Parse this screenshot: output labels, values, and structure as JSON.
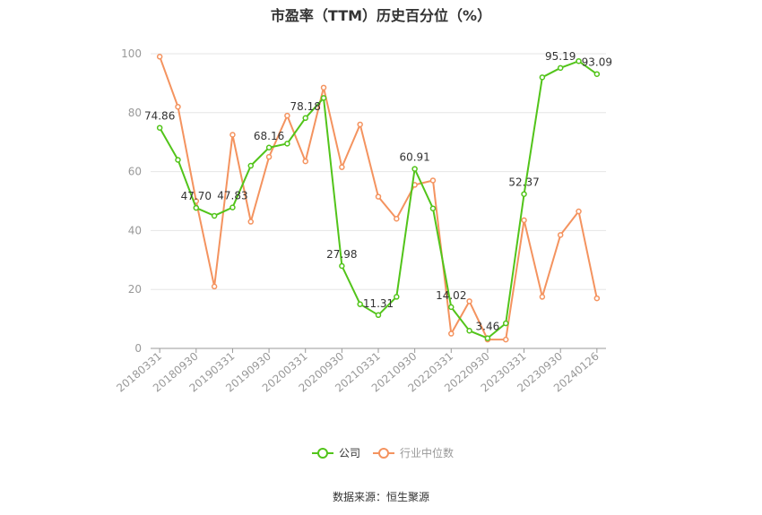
{
  "chart_data": {
    "type": "line",
    "title": "市盈率（TTM）历史百分位（%）",
    "ylim": [
      0,
      100
    ],
    "yticks": [
      0,
      20,
      40,
      60,
      80,
      100
    ],
    "x": [
      "20180331",
      "20180630",
      "20180930",
      "20181231",
      "20190331",
      "20190630",
      "20190930",
      "20191231",
      "20200331",
      "20200630",
      "20200930",
      "20201231",
      "20210331",
      "20210630",
      "20210930",
      "20211231",
      "20220331",
      "20220630",
      "20220930",
      "20221231",
      "20230331",
      "20230630",
      "20230930",
      "20231231",
      "20240126"
    ],
    "xtick_labels": [
      "20180331",
      "20180930",
      "20190331",
      "20190930",
      "20200331",
      "20200930",
      "20210331",
      "20210930",
      "20220331",
      "20220930",
      "20230331",
      "20230930",
      "20240126"
    ],
    "grid": true,
    "legend_position": "bottom",
    "series": [
      {
        "name": "公司",
        "color": "#52c41a",
        "values": [
          74.86,
          64.0,
          47.7,
          45.0,
          47.83,
          62.0,
          68.16,
          69.5,
          78.18,
          85.0,
          27.98,
          15.0,
          11.31,
          17.5,
          60.91,
          47.5,
          14.02,
          6.0,
          3.46,
          8.5,
          52.37,
          92.0,
          95.19,
          97.5,
          93.09
        ],
        "labels": [
          "74.86",
          "",
          "47.70",
          "",
          "47.83",
          "",
          "68.16",
          "",
          "78.18",
          "",
          "27.98",
          "",
          "11.31",
          "",
          "60.91",
          "",
          "14.02",
          "",
          "3.46",
          "",
          "52.37",
          "",
          "95.19",
          "",
          "93.09"
        ]
      },
      {
        "name": "行业中位数",
        "color": "#f4935f",
        "values": [
          99.0,
          82.0,
          50.0,
          21.0,
          72.5,
          43.0,
          65.0,
          79.0,
          63.5,
          88.5,
          61.5,
          76.0,
          51.5,
          44.0,
          55.5,
          57.0,
          5.0,
          16.0,
          3.0,
          3.0,
          43.5,
          17.5,
          38.5,
          46.5,
          17.0
        ]
      }
    ]
  },
  "source": "数据来源：恒生聚源"
}
